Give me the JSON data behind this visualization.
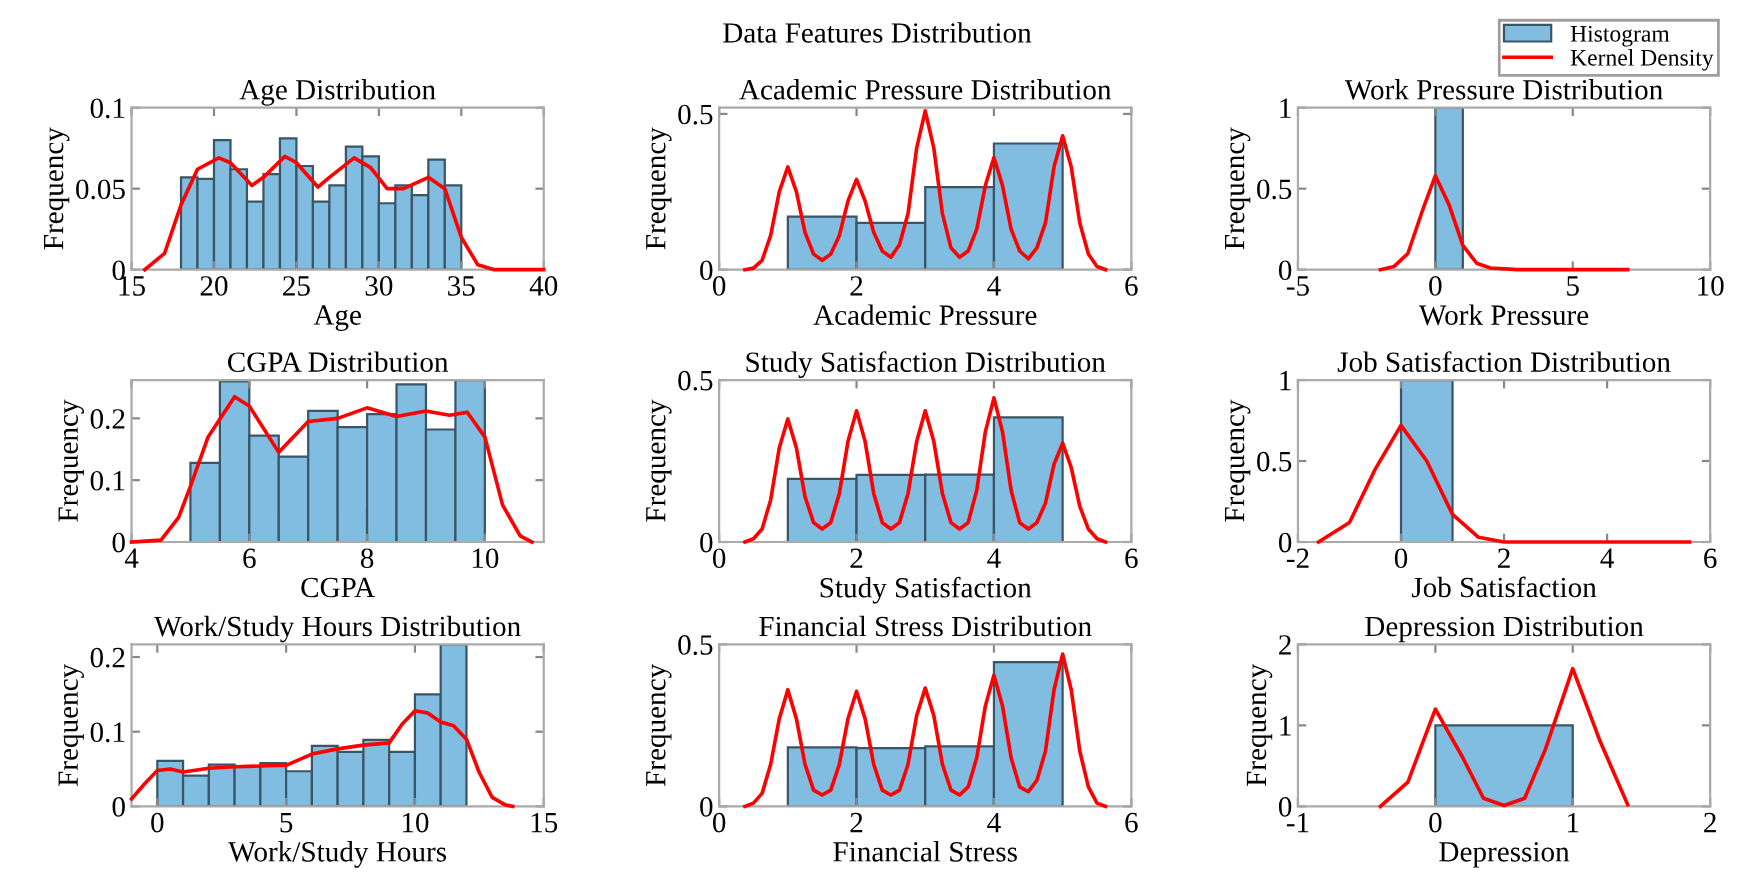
{
  "chart_data": [
    {
      "type": "histogram",
      "title": "Age Distribution",
      "xlabel": "Age",
      "ylabel": "Frequency",
      "xlim": [
        15,
        40
      ],
      "xticks": [
        15,
        20,
        25,
        30,
        35,
        40
      ],
      "ylim": [
        0,
        0.1
      ],
      "yticks": [
        0,
        0.05,
        0.1
      ],
      "bins": [
        18,
        19,
        20,
        21,
        22,
        23,
        24,
        25,
        26,
        27,
        28,
        29,
        30,
        31,
        32,
        33,
        34,
        35
      ],
      "series": [
        {
          "type": "histogram",
          "color": "#80bde0",
          "values": [
            0.057,
            0.056,
            0.08,
            0.062,
            0.042,
            0.059,
            0.081,
            0.064,
            0.042,
            0.052,
            0.076,
            0.07,
            0.041,
            0.052,
            0.046,
            0.068,
            0.052
          ]
        },
        {
          "type": "line",
          "color": "#ff0000",
          "x": [
            15.8,
            17,
            18,
            19,
            20.3,
            21,
            22.3,
            23,
            24.3,
            25,
            26.3,
            27,
            28.5,
            29.5,
            30.5,
            31.5,
            33,
            34,
            35,
            36,
            37,
            40
          ],
          "values": [
            0,
            0.01,
            0.04,
            0.062,
            0.069,
            0.066,
            0.052,
            0.057,
            0.07,
            0.066,
            0.051,
            0.057,
            0.069,
            0.063,
            0.05,
            0.05,
            0.057,
            0.05,
            0.02,
            0.003,
            0,
            0
          ]
        }
      ]
    },
    {
      "type": "histogram",
      "title": "Academic Pressure Distribution",
      "xlabel": "Academic Pressure",
      "ylabel": "Frequency",
      "xlim": [
        0,
        6
      ],
      "xticks": [
        0,
        2,
        4,
        6
      ],
      "ylim": [
        0,
        0.52
      ],
      "yticks": [
        0,
        0.5
      ],
      "bins": [
        1,
        2,
        3,
        4,
        5
      ],
      "annotations": [
        "Data Features Distribution"
      ],
      "series": [
        {
          "type": "histogram",
          "color": "#80bde0",
          "values": [
            0.17,
            0.15,
            0.265,
            0.405
          ]
        },
        {
          "type": "line",
          "color": "#ff0000",
          "x": [
            0.375,
            0.5,
            0.625,
            0.75,
            0.875,
            1,
            1.125,
            1.25,
            1.375,
            1.5,
            1.625,
            1.75,
            1.875,
            2,
            2.125,
            2.25,
            2.375,
            2.5,
            2.625,
            2.75,
            2.875,
            3,
            3.125,
            3.25,
            3.375,
            3.5,
            3.625,
            3.75,
            3.875,
            4,
            4.125,
            4.25,
            4.375,
            4.5,
            4.625,
            4.75,
            4.875,
            5,
            5.125,
            5.25,
            5.375,
            5.5,
            5.625
          ],
          "values": [
            0,
            0.005,
            0.03,
            0.11,
            0.25,
            0.33,
            0.25,
            0.12,
            0.05,
            0.03,
            0.05,
            0.11,
            0.22,
            0.29,
            0.22,
            0.12,
            0.06,
            0.04,
            0.08,
            0.18,
            0.39,
            0.51,
            0.39,
            0.18,
            0.07,
            0.04,
            0.06,
            0.13,
            0.27,
            0.36,
            0.27,
            0.13,
            0.06,
            0.035,
            0.07,
            0.15,
            0.33,
            0.43,
            0.33,
            0.15,
            0.05,
            0.01,
            0
          ]
        }
      ]
    },
    {
      "type": "histogram",
      "title": "Work Pressure Distribution",
      "xlabel": "Work Pressure",
      "ylabel": "Frequency",
      "xlim": [
        -5,
        10
      ],
      "xticks": [
        -5,
        0,
        5,
        10
      ],
      "ylim": [
        0,
        1
      ],
      "yticks": [
        0,
        0.5,
        1
      ],
      "bins": [
        0,
        1
      ],
      "legend": "top right",
      "series": [
        {
          "name": "Histogram",
          "type": "histogram",
          "color": "#80bde0",
          "values": [
            1
          ]
        },
        {
          "name": "Kernel Density",
          "type": "line",
          "color": "#ff0000",
          "x": [
            -2,
            -1.5,
            -1,
            -0.5,
            0,
            0.5,
            1,
            1.5,
            2,
            3,
            7
          ],
          "values": [
            0,
            0.02,
            0.1,
            0.35,
            0.58,
            0.4,
            0.15,
            0.04,
            0.01,
            0,
            0
          ]
        }
      ]
    },
    {
      "type": "histogram",
      "title": "CGPA Distribution",
      "xlabel": "CGPA",
      "ylabel": "Frequency",
      "xlim": [
        4,
        11
      ],
      "xticks": [
        4,
        6,
        8,
        10
      ],
      "ylim": [
        0,
        0.262
      ],
      "yticks": [
        0,
        0.1,
        0.2
      ],
      "bins": [
        5,
        5.5,
        6,
        6.5,
        7,
        7.5,
        8,
        8.5,
        9,
        9.5,
        10
      ],
      "series": [
        {
          "type": "histogram",
          "color": "#80bde0",
          "values": [
            0.128,
            0.26,
            0.172,
            0.138,
            0.212,
            0.186,
            0.207,
            0.255,
            0.182,
            0.262
          ]
        },
        {
          "type": "line",
          "color": "#ff0000",
          "x": [
            4,
            4.5,
            4.8,
            5,
            5.3,
            5.75,
            6,
            6.5,
            7,
            7.5,
            8,
            8.5,
            9,
            9.4,
            9.7,
            10,
            10.3,
            10.6,
            10.8
          ],
          "values": [
            0,
            0.003,
            0.04,
            0.09,
            0.17,
            0.235,
            0.22,
            0.145,
            0.195,
            0.2,
            0.217,
            0.203,
            0.212,
            0.205,
            0.21,
            0.17,
            0.06,
            0.01,
            0
          ]
        }
      ]
    },
    {
      "type": "histogram",
      "title": "Study Satisfaction Distribution",
      "xlabel": "Study Satisfaction",
      "ylabel": "Frequency",
      "xlim": [
        0,
        6
      ],
      "xticks": [
        0,
        2,
        4,
        6
      ],
      "ylim": [
        0,
        0.5
      ],
      "yticks": [
        0,
        0.5
      ],
      "bins": [
        1,
        2,
        3,
        4,
        5
      ],
      "series": [
        {
          "type": "histogram",
          "color": "#80bde0",
          "values": [
            0.195,
            0.207,
            0.208,
            0.385
          ]
        },
        {
          "type": "line",
          "color": "#ff0000",
          "x": [
            0.375,
            0.5,
            0.625,
            0.75,
            0.875,
            1,
            1.125,
            1.25,
            1.375,
            1.5,
            1.625,
            1.75,
            1.875,
            2,
            2.125,
            2.25,
            2.375,
            2.5,
            2.625,
            2.75,
            2.875,
            3,
            3.125,
            3.25,
            3.375,
            3.5,
            3.625,
            3.75,
            3.875,
            4,
            4.125,
            4.25,
            4.375,
            4.5,
            4.625,
            4.75,
            4.875,
            5,
            5.125,
            5.25,
            5.375,
            5.5,
            5.625
          ],
          "values": [
            0,
            0.01,
            0.04,
            0.13,
            0.29,
            0.38,
            0.29,
            0.14,
            0.06,
            0.04,
            0.06,
            0.15,
            0.31,
            0.405,
            0.31,
            0.15,
            0.06,
            0.04,
            0.06,
            0.15,
            0.31,
            0.405,
            0.31,
            0.15,
            0.06,
            0.04,
            0.06,
            0.16,
            0.34,
            0.445,
            0.34,
            0.16,
            0.06,
            0.04,
            0.06,
            0.12,
            0.24,
            0.305,
            0.23,
            0.11,
            0.04,
            0.01,
            0
          ]
        }
      ]
    },
    {
      "type": "histogram",
      "title": "Job Satisfaction Distribution",
      "xlabel": "Job Satisfaction",
      "ylabel": "Frequency",
      "xlim": [
        -2,
        6
      ],
      "xticks": [
        -2,
        0,
        2,
        4,
        6
      ],
      "ylim": [
        0,
        1
      ],
      "yticks": [
        0,
        0.5,
        1
      ],
      "bins": [
        0,
        1
      ],
      "series": [
        {
          "type": "histogram",
          "color": "#80bde0",
          "values": [
            1
          ]
        },
        {
          "type": "line",
          "color": "#ff0000",
          "x": [
            -1.6,
            -1,
            -0.5,
            0,
            0.5,
            1,
            1.5,
            2,
            3,
            5.6
          ],
          "values": [
            0,
            0.12,
            0.45,
            0.72,
            0.5,
            0.17,
            0.03,
            0,
            0,
            0
          ]
        }
      ]
    },
    {
      "type": "histogram",
      "title": "Work/Study Hours Distribution",
      "xlabel": "Work/Study Hours",
      "ylabel": "Frequency",
      "xlim": [
        -1,
        15
      ],
      "xticks": [
        0,
        5,
        10,
        15
      ],
      "ylim": [
        0,
        0.217
      ],
      "yticks": [
        0,
        0.1,
        0.2
      ],
      "bins": [
        0,
        1,
        2,
        3,
        4,
        5,
        6,
        7,
        8,
        9,
        10,
        11,
        12
      ],
      "series": [
        {
          "type": "histogram",
          "color": "#80bde0",
          "values": [
            0.061,
            0.041,
            0.056,
            0.054,
            0.058,
            0.047,
            0.081,
            0.073,
            0.089,
            0.073,
            0.15,
            0.217
          ]
        },
        {
          "type": "line",
          "color": "#ff0000",
          "x": [
            -1,
            -0.5,
            0,
            0.5,
            1,
            2,
            3,
            4,
            5,
            6,
            7,
            8,
            9,
            9.5,
            10,
            10.5,
            11,
            11.5,
            12,
            12.5,
            13,
            13.5,
            13.8
          ],
          "values": [
            0.01,
            0.03,
            0.048,
            0.05,
            0.046,
            0.051,
            0.053,
            0.054,
            0.055,
            0.07,
            0.077,
            0.082,
            0.085,
            0.11,
            0.128,
            0.125,
            0.113,
            0.108,
            0.09,
            0.045,
            0.012,
            0.002,
            0
          ]
        }
      ]
    },
    {
      "type": "histogram",
      "title": "Financial Stress Distribution",
      "xlabel": "Financial Stress",
      "ylabel": "Frequency",
      "xlim": [
        0,
        6
      ],
      "xticks": [
        0,
        2,
        4,
        6
      ],
      "ylim": [
        0,
        0.5
      ],
      "yticks": [
        0,
        0.5
      ],
      "bins": [
        1,
        2,
        3,
        4,
        5
      ],
      "series": [
        {
          "type": "histogram",
          "color": "#80bde0",
          "values": [
            0.182,
            0.18,
            0.185,
            0.445
          ]
        },
        {
          "type": "line",
          "color": "#ff0000",
          "x": [
            0.375,
            0.5,
            0.625,
            0.75,
            0.875,
            1,
            1.125,
            1.25,
            1.375,
            1.5,
            1.625,
            1.75,
            1.875,
            2,
            2.125,
            2.25,
            2.375,
            2.5,
            2.625,
            2.75,
            2.875,
            3,
            3.125,
            3.25,
            3.375,
            3.5,
            3.625,
            3.75,
            3.875,
            4,
            4.125,
            4.25,
            4.375,
            4.5,
            4.625,
            4.75,
            4.875,
            5,
            5.125,
            5.25,
            5.375,
            5.5,
            5.625
          ],
          "values": [
            0,
            0.01,
            0.04,
            0.13,
            0.27,
            0.36,
            0.27,
            0.13,
            0.05,
            0.035,
            0.05,
            0.13,
            0.27,
            0.355,
            0.27,
            0.13,
            0.05,
            0.035,
            0.05,
            0.13,
            0.28,
            0.365,
            0.28,
            0.13,
            0.05,
            0.035,
            0.06,
            0.15,
            0.31,
            0.405,
            0.31,
            0.15,
            0.06,
            0.045,
            0.08,
            0.17,
            0.36,
            0.47,
            0.36,
            0.17,
            0.06,
            0.01,
            0
          ]
        }
      ]
    },
    {
      "type": "histogram",
      "title": "Depression Distribution",
      "xlabel": "Depression",
      "ylabel": "Frequency",
      "xlim": [
        -1,
        2
      ],
      "xticks": [
        -1,
        0,
        1,
        2
      ],
      "ylim": [
        0,
        2
      ],
      "yticks": [
        0,
        1,
        2
      ],
      "bins": [
        0,
        1
      ],
      "series": [
        {
          "type": "histogram",
          "color": "#80bde0",
          "values": [
            1
          ]
        },
        {
          "type": "line",
          "color": "#ff0000",
          "x": [
            -0.4,
            -0.2,
            0,
            0.2,
            0.35,
            0.5,
            0.65,
            0.8,
            1,
            1.2,
            1.4
          ],
          "values": [
            0,
            0.3,
            1.2,
            0.6,
            0.1,
            0.01,
            0.1,
            0.7,
            1.7,
            0.8,
            0.02
          ]
        }
      ]
    }
  ]
}
